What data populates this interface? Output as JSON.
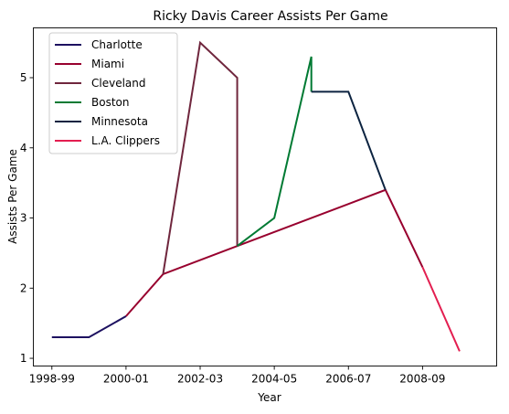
{
  "chart_data": {
    "type": "line",
    "title": "Ricky Davis Career Assists Per Game",
    "xlabel": "Year",
    "ylabel": "Assists Per Game",
    "x_tick_labels": [
      "1998-99",
      "2000-01",
      "2002-03",
      "2004-05",
      "2006-07",
      "2008-09"
    ],
    "y_ticks": [
      1,
      2,
      3,
      4,
      5
    ],
    "xlim": [
      1998.0,
      2010.5
    ],
    "ylim": [
      0.89,
      5.71
    ],
    "grid": false,
    "legend_position": "top-left",
    "series": [
      {
        "name": "Charlotte",
        "color": "#1d1160",
        "points": [
          [
            1998.5,
            1.3
          ],
          [
            1999.5,
            1.3
          ],
          [
            2000.5,
            1.6
          ]
        ]
      },
      {
        "name": "Miami",
        "color": "#98002e",
        "points": [
          [
            2000.5,
            1.6
          ],
          [
            2001.5,
            2.2
          ],
          [
            2007.5,
            3.4
          ],
          [
            2008.5,
            2.3
          ]
        ]
      },
      {
        "name": "Cleveland",
        "color": "#6f263d",
        "points": [
          [
            2001.5,
            2.2
          ],
          [
            2002.5,
            5.5
          ],
          [
            2003.5,
            5.0
          ],
          [
            2003.5,
            2.6
          ]
        ]
      },
      {
        "name": "Boston",
        "color": "#007a33",
        "points": [
          [
            2003.5,
            2.6
          ],
          [
            2004.5,
            3.0
          ],
          [
            2005.5,
            5.3
          ],
          [
            2005.5,
            4.8
          ]
        ]
      },
      {
        "name": "Minnesota",
        "color": "#0c2340",
        "points": [
          [
            2005.5,
            4.8
          ],
          [
            2006.5,
            4.8
          ],
          [
            2007.5,
            3.4
          ]
        ]
      },
      {
        "name": "L.A. Clippers",
        "color": "#e31e50",
        "points": [
          [
            2008.5,
            2.3
          ],
          [
            2009.5,
            1.1
          ]
        ]
      }
    ]
  }
}
